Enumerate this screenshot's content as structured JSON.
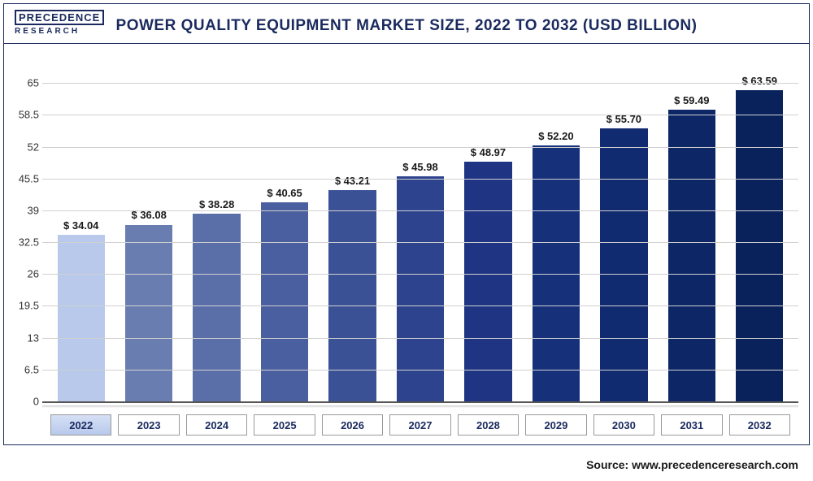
{
  "logo": {
    "line1": "PRECEDENCE",
    "line2": "RESEARCH"
  },
  "chart": {
    "type": "bar",
    "title": "POWER QUALITY EQUIPMENT MARKET SIZE, 2022 TO 2032 (USD BILLION)",
    "categories": [
      "2022",
      "2023",
      "2024",
      "2025",
      "2026",
      "2027",
      "2028",
      "2029",
      "2030",
      "2031",
      "2032"
    ],
    "values": [
      34.04,
      36.08,
      38.28,
      40.65,
      43.21,
      45.98,
      48.97,
      52.2,
      55.7,
      59.49,
      63.59
    ],
    "value_labels": [
      "$ 34.04",
      "$ 36.08",
      "$ 38.28",
      "$ 40.65",
      "$ 43.21",
      "$ 45.98",
      "$ 48.97",
      "$ 52.20",
      "$ 55.70",
      "$ 59.49",
      "$ 63.59"
    ],
    "bar_colors": [
      "#b8c9ec",
      "#6a7db0",
      "#5a6fa8",
      "#4a5f9f",
      "#3b5196",
      "#2d438d",
      "#1f3584",
      "#16307a",
      "#112b70",
      "#0d2666",
      "#0a225c"
    ],
    "ylim": [
      0,
      70
    ],
    "yticks": [
      0,
      6.5,
      13,
      19.5,
      26,
      32.5,
      39,
      45.5,
      52,
      58.5,
      65
    ],
    "ytick_labels": [
      "0",
      "6.5",
      "13",
      "19.5",
      "26",
      "32.5",
      "39",
      "45.5",
      "52",
      "58.5",
      "65"
    ],
    "grid_color": "#d0d0d0",
    "background_color": "#ffffff",
    "border_color": "#1a2a5e",
    "title_fontsize": 19,
    "label_fontsize": 13,
    "bar_width": 0.7
  },
  "source": "Source: www.precedenceresearch.com"
}
